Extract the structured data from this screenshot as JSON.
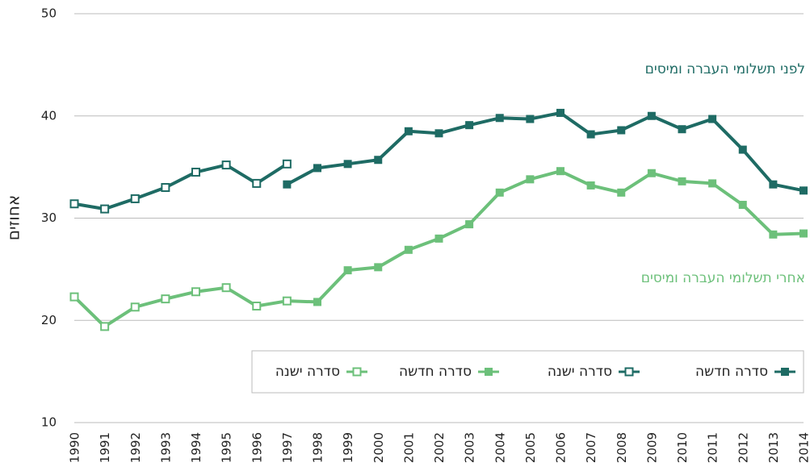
{
  "chart_data": {
    "type": "line",
    "ylabel": "אחוזים",
    "annotations": [
      {
        "text": "לפני תשלומי העברה ומיסים",
        "color": "#1e6b64"
      },
      {
        "text": "אחרי תשלומי העברה ומיסים",
        "color": "#6cc07a"
      }
    ],
    "x": [
      1990,
      1991,
      1992,
      1993,
      1994,
      1995,
      1996,
      1997,
      1998,
      1999,
      2000,
      2001,
      2002,
      2003,
      2004,
      2005,
      2006,
      2007,
      2008,
      2009,
      2010,
      2011,
      2012,
      2013,
      2014
    ],
    "series": [
      {
        "name": "סדרה חדשה",
        "color": "#1e6b64",
        "marker": "filled",
        "values": [
          null,
          null,
          null,
          null,
          null,
          null,
          null,
          33.3,
          34.9,
          35.3,
          35.7,
          38.5,
          38.3,
          39.1,
          39.8,
          39.7,
          40.3,
          38.2,
          38.6,
          40.0,
          38.7,
          39.7,
          36.7,
          33.3,
          32.7
        ]
      },
      {
        "name": "סדרה ישנה",
        "color": "#1e6b64",
        "marker": "hollow",
        "values": [
          31.4,
          30.9,
          31.9,
          33.0,
          34.5,
          35.2,
          33.4,
          35.3,
          null,
          null,
          null,
          null,
          null,
          null,
          null,
          null,
          null,
          null,
          null,
          null,
          null,
          null,
          null,
          null,
          null
        ]
      },
      {
        "name": "סדרה חדשה",
        "color": "#6cc07a",
        "marker": "filled",
        "values": [
          null,
          null,
          null,
          null,
          null,
          null,
          null,
          21.9,
          21.8,
          24.9,
          25.2,
          26.9,
          28.0,
          29.4,
          32.5,
          33.8,
          34.6,
          33.2,
          32.5,
          34.4,
          33.6,
          33.4,
          31.3,
          28.4,
          28.5
        ]
      },
      {
        "name": "סדרה ישנה",
        "color": "#6cc07a",
        "marker": "hollow",
        "values": [
          22.3,
          19.4,
          21.3,
          22.1,
          22.8,
          23.2,
          21.4,
          21.9,
          null,
          null,
          null,
          null,
          null,
          null,
          null,
          null,
          null,
          null,
          null,
          null,
          null,
          null,
          null,
          null,
          null
        ]
      }
    ],
    "xlim": [
      1990,
      2014
    ],
    "ylim": [
      10,
      50
    ],
    "yticks": [
      10,
      20,
      30,
      40,
      50
    ],
    "grid": true
  }
}
